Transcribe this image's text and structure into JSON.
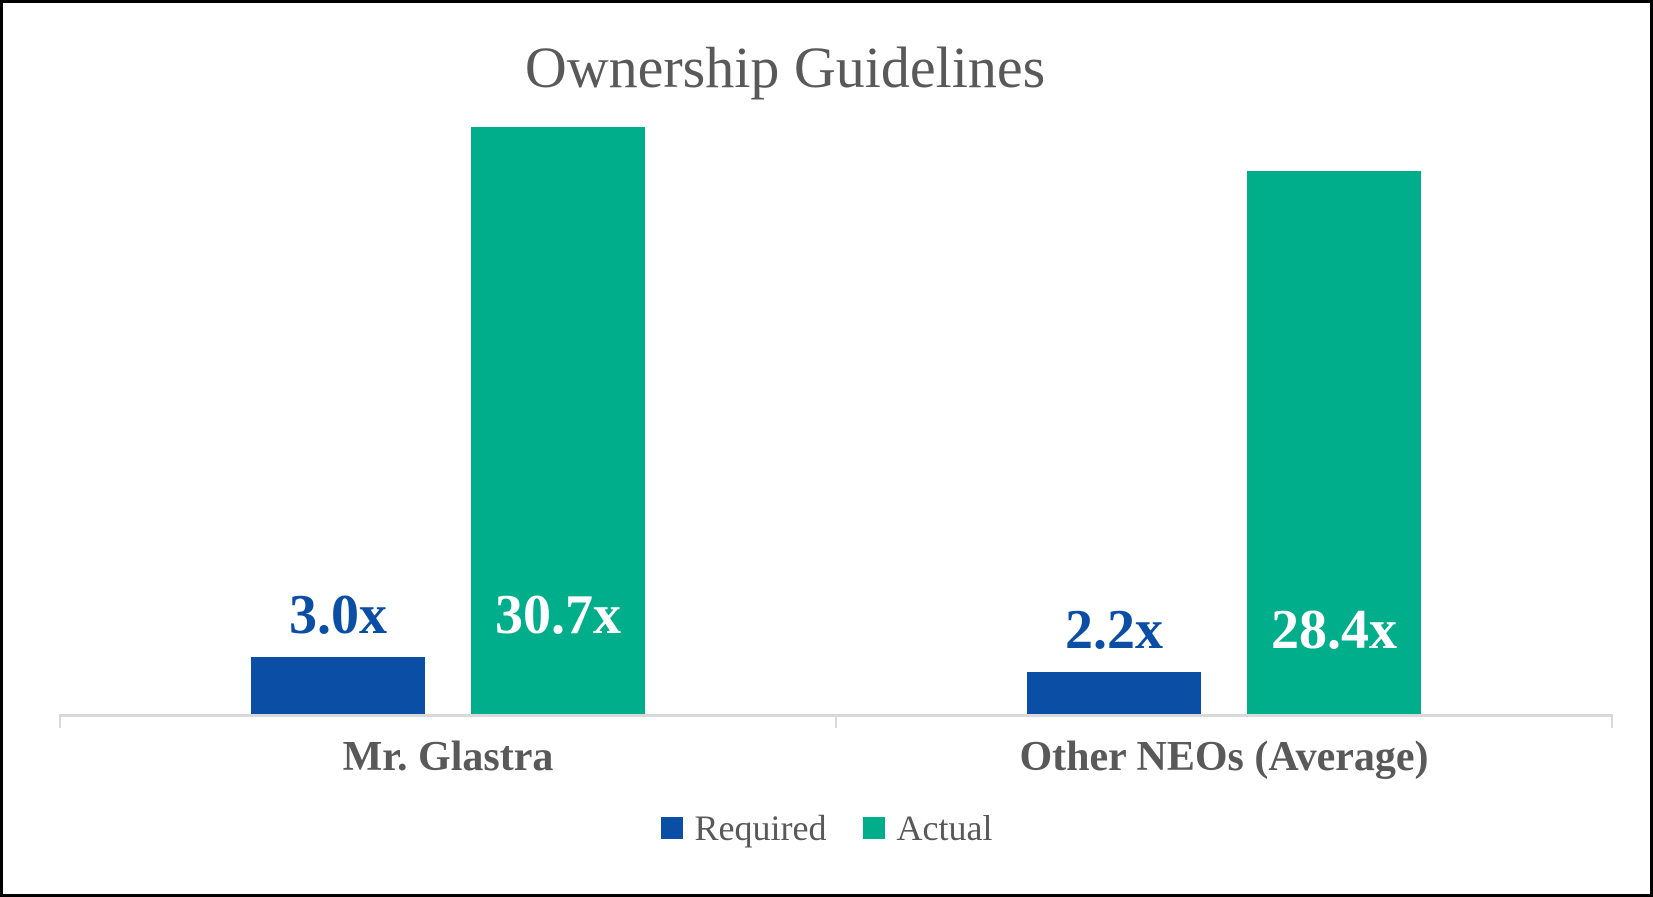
{
  "chart_data": {
    "type": "bar",
    "title": "Ownership Guidelines",
    "categories": [
      "Mr. Glastra",
      "Other NEOs (Average)"
    ],
    "series": [
      {
        "name": "Required",
        "color": "#0B4EA6",
        "values": [
          3.0,
          2.2
        ],
        "data_labels": [
          "3.0x",
          "2.2x"
        ],
        "label_color": "#0B4EA6",
        "label_placement": "above-bar"
      },
      {
        "name": "Actual",
        "color": "#00AE8C",
        "values": [
          30.7,
          28.4
        ],
        "data_labels": [
          "30.7x",
          "28.4x"
        ],
        "label_color": "#FFFFFF",
        "label_placement": "inside-bar-at-group-baseline"
      }
    ],
    "xlabel": "",
    "ylabel": "",
    "ylim": [
      0,
      31.3
    ],
    "y_axis_visible": false,
    "grid": false,
    "legend_position": "bottom",
    "axis_line_color": "#D9D9D9",
    "text_color": "#595959",
    "title_color": "#595959"
  }
}
